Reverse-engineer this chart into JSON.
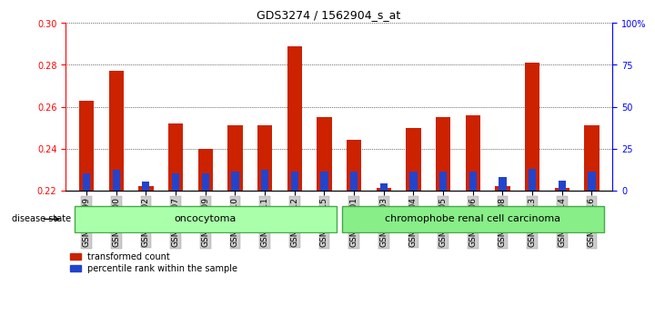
{
  "title": "GDS3274 / 1562904_s_at",
  "samples": [
    "GSM305099",
    "GSM305100",
    "GSM305102",
    "GSM305107",
    "GSM305109",
    "GSM305110",
    "GSM305111",
    "GSM305112",
    "GSM305115",
    "GSM305101",
    "GSM305103",
    "GSM305104",
    "GSM305105",
    "GSM305106",
    "GSM305108",
    "GSM305113",
    "GSM305114",
    "GSM305116"
  ],
  "transformed_count": [
    0.263,
    0.277,
    0.222,
    0.252,
    0.24,
    0.251,
    0.251,
    0.289,
    0.255,
    0.244,
    0.221,
    0.25,
    0.255,
    0.256,
    0.222,
    0.281,
    0.221,
    0.251
  ],
  "percentile_rank": [
    10,
    12,
    5,
    10,
    10,
    11,
    12,
    11,
    11,
    11,
    4,
    11,
    11,
    11,
    8,
    13,
    6,
    11
  ],
  "ylim_left": [
    0.22,
    0.3
  ],
  "ylim_right": [
    0,
    100
  ],
  "yticks_left": [
    0.22,
    0.24,
    0.26,
    0.28,
    0.3
  ],
  "yticks_right": [
    0,
    25,
    50,
    75,
    100
  ],
  "ytick_right_labels": [
    "0",
    "25",
    "50",
    "75",
    "100%"
  ],
  "bar_color_red": "#cc2200",
  "bar_color_blue": "#2244cc",
  "oncocytoma_group": [
    0,
    8
  ],
  "chromophobe_group": [
    9,
    17
  ],
  "disease_state_label": "disease state",
  "group1_label": "oncocytoma",
  "group2_label": "chromophobe renal cell carcinoma",
  "legend1_label": "transformed count",
  "legend2_label": "percentile rank within the sample",
  "bar_width": 0.5,
  "group1_color": "#aaffaa",
  "group2_color": "#88ee88",
  "background_color": "#ffffff",
  "grid_color": "#000000",
  "base_value": 0.22
}
